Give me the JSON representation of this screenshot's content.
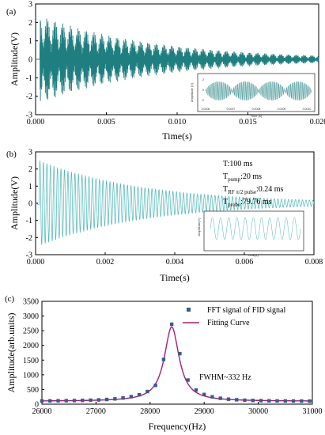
{
  "colors": {
    "signal_a": "#1f7f80",
    "signal_a_fill": "#2a9aa0",
    "signal_b": "#4db6b6",
    "fft_marker": "#3a5a8c",
    "fit_curve": "#a0207a",
    "baseline": "#666666"
  },
  "chart_data": [
    {
      "panel": "(a)",
      "type": "line",
      "title": "",
      "xlabel": "Time(s)",
      "ylabel": "Amplitude(V)",
      "xlim": [
        0,
        0.02
      ],
      "ylim": [
        -3,
        3
      ],
      "xticks": [
        "0.000",
        "0.005",
        "0.010",
        "0.015",
        "0.020"
      ],
      "yticks": [
        "-3",
        "-2",
        "-1",
        "0",
        "1",
        "2",
        "3"
      ],
      "series": [
        {
          "kind": "decaying-oscillation",
          "x_start": 0,
          "peak_amplitude": 2.4,
          "decay_time_s": 0.008,
          "envelope_period_s": 0.00055
        }
      ],
      "inset": {
        "ylabel": "Amplitude (V)",
        "xlabel": "Time (s)",
        "xticks": [
          "0.0006",
          "0.0007",
          "0.0008",
          "0.0009",
          "0.0010"
        ],
        "yticks": [
          "2",
          "0",
          "-2"
        ],
        "oscillation_bursts": 4
      }
    },
    {
      "panel": "(b)",
      "type": "line",
      "title": "",
      "xlabel": "Time(s)",
      "ylabel": "Amplitude(V)",
      "xlim": [
        0,
        0.008
      ],
      "ylim": [
        -3,
        3
      ],
      "xticks": [
        "0.000",
        "0.002",
        "0.004",
        "0.006",
        "0.008"
      ],
      "yticks": [
        "-3",
        "-2",
        "-1",
        "0",
        "1",
        "2",
        "3"
      ],
      "series": [
        {
          "kind": "decaying-oscillation",
          "x_start": 0.0001,
          "peak_amplitude": 2.5,
          "decay_time_s": 0.003
        }
      ],
      "annotations": {
        "T": "T:100 ms",
        "T_pump": "T",
        "T_pump_sub": "pump",
        "T_pump_val": ":20 ms",
        "T_rf": "T",
        "T_rf_sub": "RF π/2 pulse",
        "T_rf_val": ":0.24 ms",
        "T_probe": "T",
        "T_probe_sub": "probe",
        "T_probe_val": ":79.76 ms"
      },
      "inset": {
        "ylabel": "Amplitude(V)",
        "xlabel": "Time(s)",
        "cycles": 11
      }
    },
    {
      "panel": "(c)",
      "type": "scatter",
      "title": "",
      "xlabel": "Frequency(Hz)",
      "ylabel": "Amplitude(arb.units)",
      "xlim": [
        26000,
        31000
      ],
      "ylim": [
        0,
        3500
      ],
      "xticks": [
        "26000",
        "27000",
        "28000",
        "29000",
        "30000",
        "31000"
      ],
      "yticks": [
        "0",
        "500",
        "1000",
        "1500",
        "2000",
        "2500",
        "3000",
        "3500"
      ],
      "series": [
        {
          "name": "FFT signal of FID signal",
          "x": [
            26000,
            26150,
            26300,
            26450,
            26600,
            26750,
            26900,
            27050,
            27200,
            27350,
            27500,
            27650,
            27800,
            27950,
            28100,
            28250,
            28400,
            28550,
            28700,
            28850,
            29000,
            29150,
            29300,
            29450,
            29600,
            29750,
            29900,
            30050,
            30200,
            30350,
            30500,
            30650,
            30800,
            30950
          ],
          "y": [
            110,
            112,
            115,
            118,
            122,
            128,
            135,
            145,
            160,
            180,
            210,
            255,
            320,
            430,
            640,
            1520,
            2720,
            1720,
            820,
            480,
            330,
            250,
            200,
            170,
            150,
            135,
            125,
            118,
            113,
            110,
            108,
            106,
            104,
            102
          ]
        },
        {
          "name": "Fitting Curve",
          "center": 28400,
          "fwhm": 332,
          "amplitude": 2530,
          "offset": 100
        }
      ],
      "legend_position": "top-right",
      "annotation": "FWHM~332 Hz"
    }
  ]
}
